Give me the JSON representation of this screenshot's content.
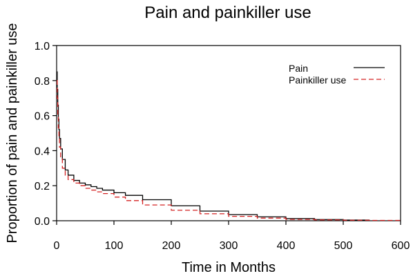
{
  "chart_data": {
    "type": "line",
    "title": "Pain and painkiller use",
    "xlabel": "Time in Months",
    "ylabel": "Proportion of pain and painkiller use",
    "xlim": [
      0,
      600
    ],
    "ylim": [
      0,
      1
    ],
    "xticks": [
      "0",
      "100",
      "200",
      "300",
      "400",
      "500",
      "600"
    ],
    "yticks": [
      "0.0",
      "0.2",
      "0.4",
      "0.6",
      "0.8",
      "1.0"
    ],
    "grid": false,
    "legend_position": "top-right",
    "series": [
      {
        "name": "Pain",
        "color": "#000000",
        "style": "solid",
        "x": [
          0,
          1,
          2,
          3,
          4,
          5,
          7,
          10,
          15,
          20,
          30,
          40,
          50,
          60,
          70,
          80,
          100,
          120,
          150,
          200,
          250,
          300,
          350,
          400,
          450,
          500,
          545
        ],
        "y": [
          0.85,
          0.75,
          0.66,
          0.58,
          0.52,
          0.47,
          0.41,
          0.35,
          0.29,
          0.26,
          0.23,
          0.215,
          0.205,
          0.195,
          0.185,
          0.175,
          0.16,
          0.145,
          0.12,
          0.085,
          0.055,
          0.035,
          0.022,
          0.012,
          0.007,
          0.004,
          0.002
        ]
      },
      {
        "name": "Painkiller use",
        "color": "#d42020",
        "style": "dashed",
        "x": [
          0,
          1,
          2,
          3,
          4,
          5,
          7,
          10,
          15,
          20,
          30,
          40,
          50,
          60,
          70,
          80,
          100,
          120,
          150,
          200,
          250,
          300,
          350,
          400,
          450,
          500,
          550,
          600
        ],
        "y": [
          0.8,
          0.7,
          0.6,
          0.53,
          0.47,
          0.42,
          0.36,
          0.3,
          0.26,
          0.235,
          0.215,
          0.2,
          0.185,
          0.175,
          0.165,
          0.155,
          0.135,
          0.115,
          0.09,
          0.06,
          0.04,
          0.025,
          0.015,
          0.008,
          0.005,
          0.003,
          0.002,
          0.001
        ]
      }
    ]
  }
}
